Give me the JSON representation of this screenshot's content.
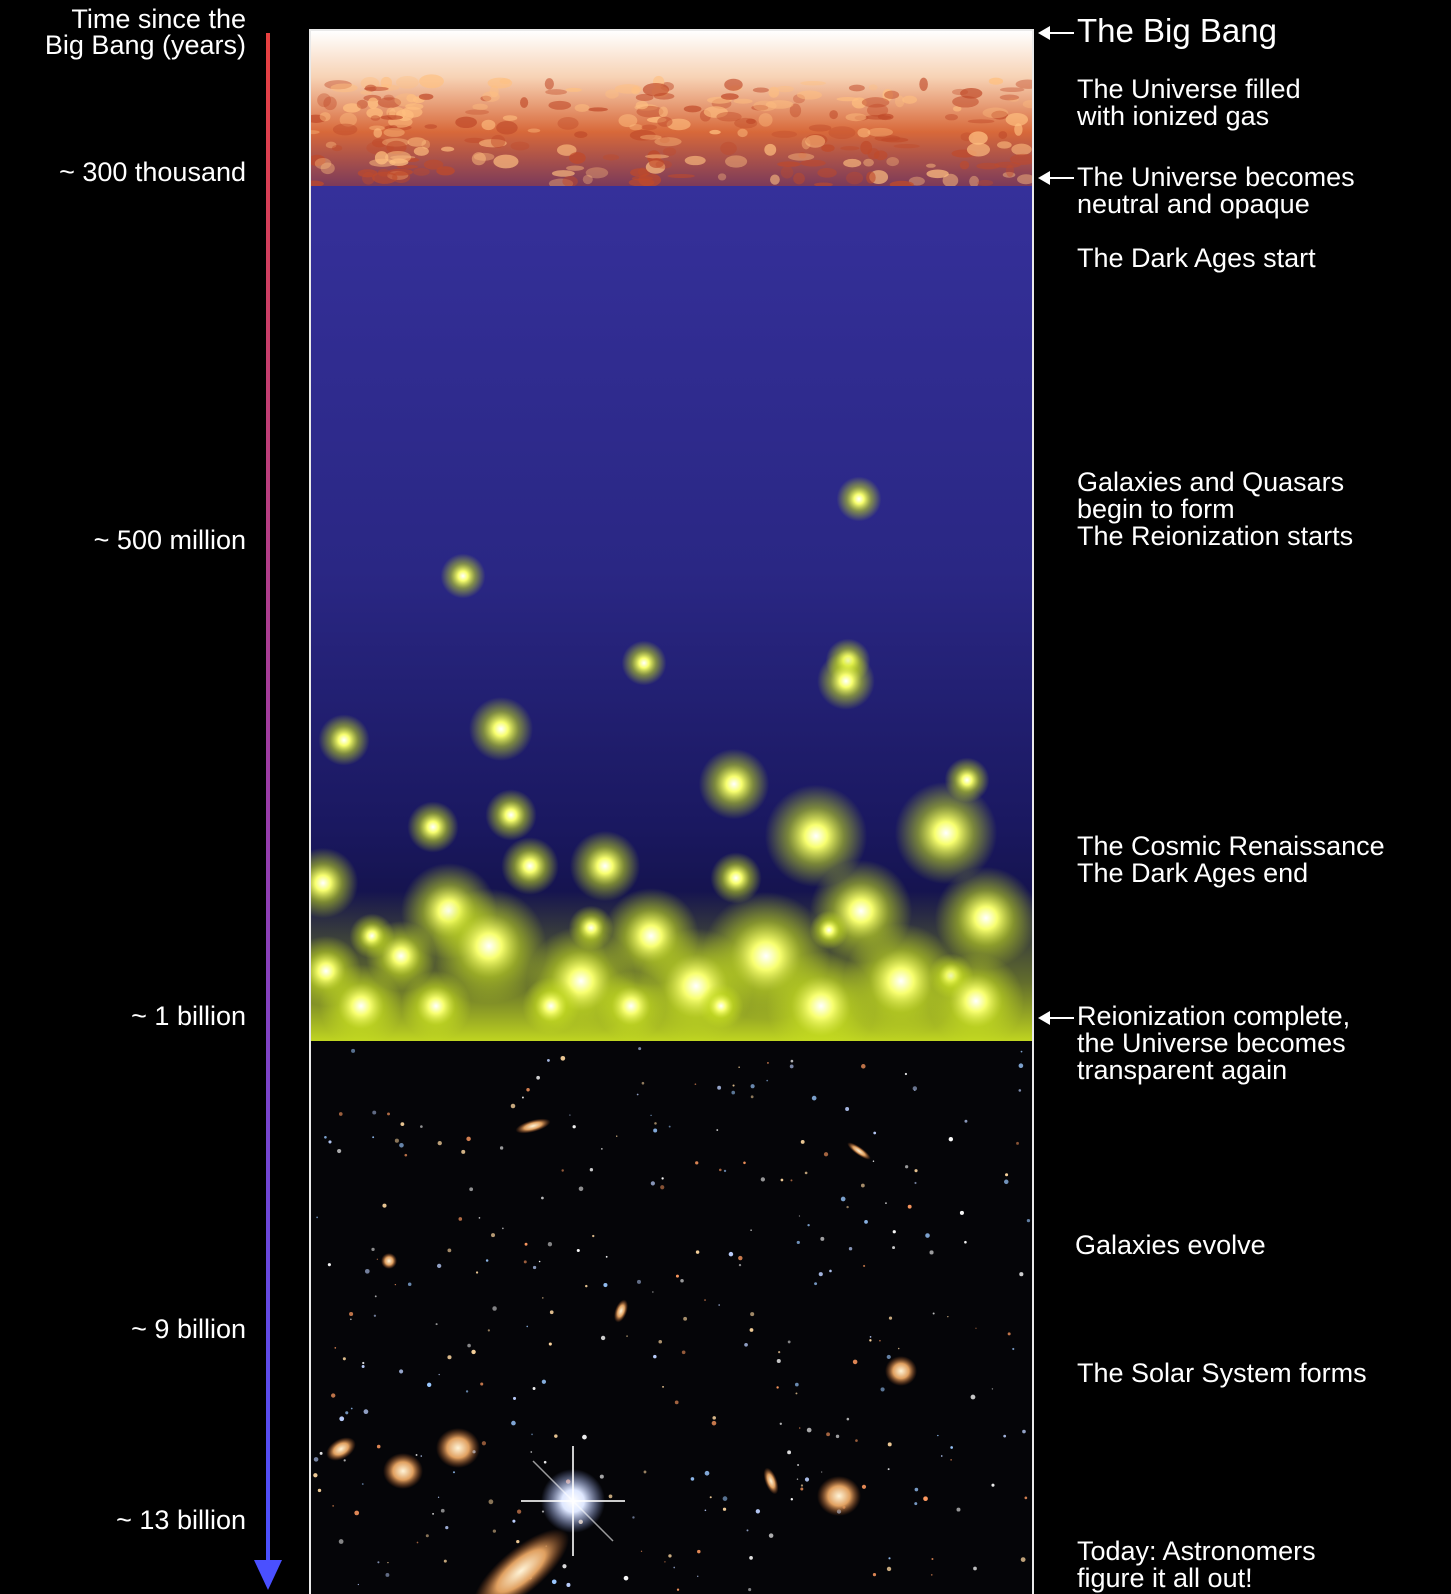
{
  "axis": {
    "title_line1": "Time since the",
    "title_line2": "Big Bang (years)",
    "ticks": [
      "~ 300 thousand",
      "~ 500 million",
      "~ 1 billion",
      "~ 9 billion",
      "~ 13 billion"
    ]
  },
  "events": {
    "big_bang": "The Big Bang",
    "ionized_gas_line1": "The Universe filled",
    "ionized_gas_line2": "with ionized gas",
    "neutral_line1": "The Universe becomes",
    "neutral_line2": "neutral and opaque",
    "dark_ages_start": "The Dark Ages start",
    "galaxies_line1": "Galaxies and Quasars",
    "galaxies_line2": "begin to form",
    "galaxies_line3": "The Reionization starts",
    "renaissance_line1": "The Cosmic Renaissance",
    "renaissance_line2": "The Dark Ages end",
    "reion_line1": "Reionization complete,",
    "reion_line2": "the Universe becomes",
    "reion_line3": "transparent again",
    "galaxies_evolve": "Galaxies evolve",
    "solar_system": "The Solar System forms",
    "today_line1": "Today: Astronomers",
    "today_line2": "figure it all out!"
  },
  "colors": {
    "timeline_start": "#e84040",
    "timeline_end": "#4a50ff",
    "ionized_gas": "#e87a3a",
    "dark_ages": "#2c2880",
    "glow": "#e8ff30",
    "space": "#050508"
  },
  "icons": {
    "timeline_arrow": "down-arrow-icon",
    "event_pointer": "left-arrow-icon"
  }
}
